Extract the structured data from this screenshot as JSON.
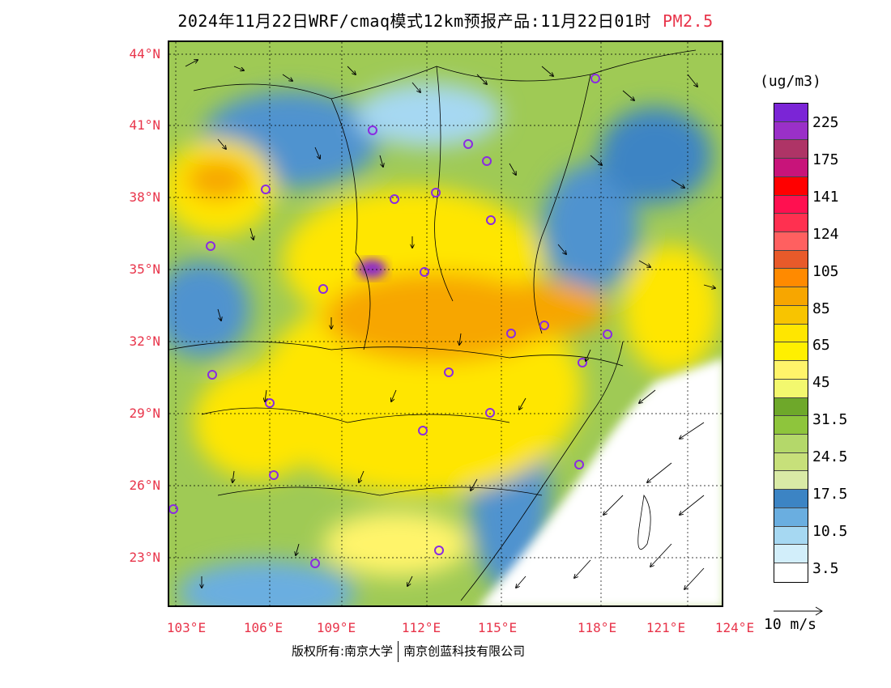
{
  "title": "2024年11月22日WRF/cmaq模式12km预报产品:11月22日01时",
  "variable": "PM2.5",
  "lat_labels": [
    "44°N",
    "41°N",
    "38°N",
    "35°N",
    "32°N",
    "29°N",
    "26°N",
    "23°N"
  ],
  "lon_labels": [
    "103°E",
    "106°E",
    "109°E",
    "112°E",
    "115°E",
    "118°E",
    "121°E",
    "124°E"
  ],
  "colorbar": {
    "unit": "(ug/m3)",
    "colors": [
      "#7b25d6",
      "#9a30c8",
      "#ae3466",
      "#c8147a",
      "#ff0000",
      "#ff1050",
      "#ff3050",
      "#ff6060",
      "#e85a2a",
      "#ff8a00",
      "#f7a600",
      "#f8c400",
      "#ffe600",
      "#fff000",
      "#fff46a",
      "#f3f86e",
      "#6ea82a",
      "#8ec53c",
      "#b4d86a",
      "#c7e07a",
      "#d9eaa6",
      "#3c84c4",
      "#6aaee0",
      "#a6d8f2",
      "#d2eefa",
      "#ffffff"
    ],
    "labels": [
      "225",
      "175",
      "141",
      "124",
      "105",
      "85",
      "65",
      "45",
      "31.5",
      "24.5",
      "17.5",
      "10.5",
      "3.5"
    ]
  },
  "vector_reference": "10 m/s",
  "footer": {
    "left": "版权所有:南京大学",
    "right": "南京创蓝科技有限公司"
  },
  "colors": {
    "accent_red": "#e8344a"
  }
}
